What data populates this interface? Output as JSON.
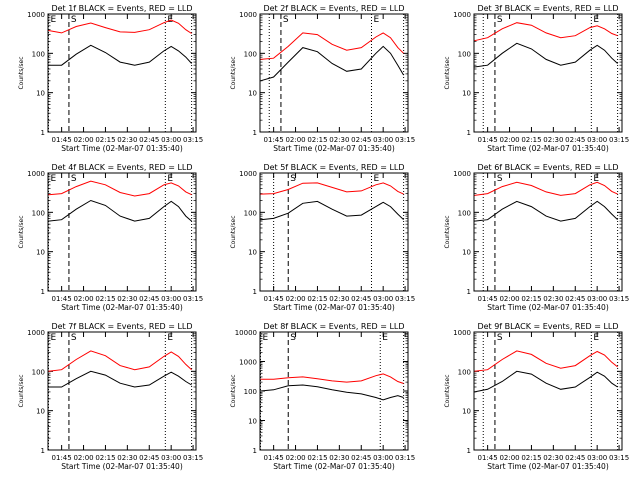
{
  "chart_data": {
    "type": "line",
    "x_ticks": [
      "01:45",
      "02:00",
      "02:15",
      "02:30",
      "02:45",
      "03:00",
      "03:15"
    ],
    "xlim": [
      "01:35:40",
      "03:17:00"
    ],
    "ylim": [
      1,
      1000
    ],
    "ylim_panel8": [
      1,
      10000
    ],
    "yscale": "log",
    "xlabel": "Start Time (02-Mar-07 01:35:40)",
    "ylabel": "Counts/sec",
    "grid": false,
    "series_colors": {
      "events": "#000000",
      "lld": "#ff0000"
    },
    "panels": [
      {
        "title": "Det 1f BLACK = Events, RED = LLD",
        "ymax": 1000,
        "markers": [
          {
            "label": "E",
            "time": "01:36"
          },
          {
            "label": "S",
            "time": "01:50"
          },
          {
            "label": "E",
            "time": "02:56"
          },
          {
            "label": "",
            "time": "03:14"
          }
        ],
        "series": [
          {
            "x": [
              "01:36",
              "01:45",
              "01:55",
              "02:05",
              "02:15",
              "02:25",
              "02:35",
              "02:45",
              "02:55",
              "03:00",
              "03:05",
              "03:10",
              "03:14"
            ],
            "y": [
              380,
              330,
              480,
              590,
              450,
              350,
              340,
              400,
              600,
              700,
              580,
              400,
              320
            ]
          },
          {
            "x": [
              "01:36",
              "01:45",
              "01:55",
              "02:05",
              "02:15",
              "02:25",
              "02:35",
              "02:45",
              "02:55",
              "03:00",
              "03:05",
              "03:10",
              "03:14"
            ],
            "y": [
              50,
              50,
              95,
              160,
              105,
              60,
              50,
              60,
              115,
              150,
              115,
              80,
              55
            ]
          }
        ]
      },
      {
        "title": "Det 2f BLACK = Events, RED = LLD",
        "ymax": 1000,
        "markers": [
          {
            "label": "",
            "time": "01:42"
          },
          {
            "label": "S",
            "time": "01:50"
          },
          {
            "label": "E",
            "time": "02:52"
          },
          {
            "label": "",
            "time": "03:14"
          }
        ],
        "series": [
          {
            "x": [
              "01:36",
              "01:45",
              "01:55",
              "02:05",
              "02:15",
              "02:25",
              "02:35",
              "02:45",
              "02:55",
              "03:00",
              "03:05",
              "03:10",
              "03:14"
            ],
            "y": [
              70,
              75,
              150,
              330,
              300,
              170,
              120,
              140,
              260,
              330,
              250,
              140,
              100
            ]
          },
          {
            "x": [
              "01:36",
              "01:45",
              "01:55",
              "02:05",
              "02:15",
              "02:25",
              "02:35",
              "02:45",
              "02:55",
              "03:00",
              "03:05",
              "03:10",
              "03:14"
            ],
            "y": [
              20,
              25,
              60,
              140,
              110,
              55,
              35,
              40,
              100,
              150,
              100,
              50,
              28
            ]
          }
        ]
      },
      {
        "title": "Det 3f BLACK = Events, RED = LLD",
        "ymax": 1000,
        "markers": [
          {
            "label": "",
            "time": "01:42"
          },
          {
            "label": "S",
            "time": "01:50"
          },
          {
            "label": "E",
            "time": "02:56"
          },
          {
            "label": "",
            "time": "03:14"
          }
        ],
        "series": [
          {
            "x": [
              "01:36",
              "01:45",
              "01:55",
              "02:05",
              "02:15",
              "02:25",
              "02:35",
              "02:45",
              "02:55",
              "03:00",
              "03:05",
              "03:10",
              "03:14"
            ],
            "y": [
              210,
              250,
              420,
              600,
              520,
              330,
              250,
              280,
              450,
              500,
              420,
              320,
              280
            ]
          },
          {
            "x": [
              "01:36",
              "01:45",
              "01:55",
              "02:05",
              "02:15",
              "02:25",
              "02:35",
              "02:45",
              "02:55",
              "03:00",
              "03:05",
              "03:10",
              "03:14"
            ],
            "y": [
              45,
              50,
              100,
              180,
              130,
              70,
              50,
              60,
              120,
              160,
              120,
              75,
              55
            ]
          }
        ]
      },
      {
        "title": "Det 4f BLACK = Events, RED = LLD",
        "ymax": 1000,
        "markers": [
          {
            "label": "E",
            "time": "01:36"
          },
          {
            "label": "S",
            "time": "01:50"
          },
          {
            "label": "E",
            "time": "02:56"
          },
          {
            "label": "",
            "time": "03:14"
          }
        ],
        "series": [
          {
            "x": [
              "01:36",
              "01:45",
              "01:55",
              "02:05",
              "02:15",
              "02:25",
              "02:35",
              "02:45",
              "02:55",
              "03:00",
              "03:05",
              "03:10",
              "03:14"
            ],
            "y": [
              280,
              300,
              450,
              620,
              500,
              320,
              260,
              300,
              500,
              560,
              470,
              330,
              280
            ]
          },
          {
            "x": [
              "01:36",
              "01:45",
              "01:55",
              "02:05",
              "02:15",
              "02:25",
              "02:35",
              "02:45",
              "02:55",
              "03:00",
              "03:05",
              "03:10",
              "03:14"
            ],
            "y": [
              60,
              65,
              120,
              200,
              150,
              80,
              60,
              70,
              140,
              190,
              140,
              80,
              60
            ]
          }
        ]
      },
      {
        "title": "Det 5f BLACK = Events, RED = LLD",
        "ymax": 1000,
        "markers": [
          {
            "label": "",
            "time": "01:45"
          },
          {
            "label": "S",
            "time": "01:55"
          },
          {
            "label": "E",
            "time": "02:52"
          },
          {
            "label": "",
            "time": "03:14"
          }
        ],
        "series": [
          {
            "x": [
              "01:36",
              "01:45",
              "01:55",
              "02:05",
              "02:15",
              "02:25",
              "02:35",
              "02:45",
              "02:55",
              "03:00",
              "03:05",
              "03:10",
              "03:14"
            ],
            "y": [
              290,
              300,
              380,
              550,
              560,
              430,
              330,
              350,
              500,
              560,
              470,
              340,
              290
            ]
          },
          {
            "x": [
              "01:36",
              "01:45",
              "01:55",
              "02:05",
              "02:15",
              "02:25",
              "02:35",
              "02:45",
              "02:55",
              "03:00",
              "03:05",
              "03:10",
              "03:14"
            ],
            "y": [
              65,
              70,
              95,
              170,
              190,
              120,
              80,
              85,
              140,
              180,
              140,
              90,
              65
            ]
          }
        ]
      },
      {
        "title": "Det 6f BLACK = Events, RED = LLD",
        "ymax": 1000,
        "markers": [
          {
            "label": "",
            "time": "01:42"
          },
          {
            "label": "S",
            "time": "01:50"
          },
          {
            "label": "E",
            "time": "02:56"
          },
          {
            "label": "",
            "time": "03:14"
          }
        ],
        "series": [
          {
            "x": [
              "01:36",
              "01:45",
              "01:55",
              "02:05",
              "02:15",
              "02:25",
              "02:35",
              "02:45",
              "02:55",
              "03:00",
              "03:05",
              "03:10",
              "03:14"
            ],
            "y": [
              270,
              300,
              450,
              580,
              480,
              330,
              270,
              300,
              500,
              580,
              480,
              340,
              290
            ]
          },
          {
            "x": [
              "01:36",
              "01:45",
              "01:55",
              "02:05",
              "02:15",
              "02:25",
              "02:35",
              "02:45",
              "02:55",
              "03:00",
              "03:05",
              "03:10",
              "03:14"
            ],
            "y": [
              60,
              65,
              120,
              190,
              140,
              80,
              60,
              70,
              140,
              190,
              140,
              90,
              65
            ]
          }
        ]
      },
      {
        "title": "Det 7f BLACK = Events, RED = LLD",
        "ymax": 1000,
        "markers": [
          {
            "label": "E",
            "time": "01:36"
          },
          {
            "label": "S",
            "time": "01:50"
          },
          {
            "label": "E",
            "time": "02:56"
          },
          {
            "label": "",
            "time": "03:14"
          }
        ],
        "series": [
          {
            "x": [
              "01:36",
              "01:45",
              "01:55",
              "02:05",
              "02:15",
              "02:25",
              "02:35",
              "02:45",
              "02:55",
              "03:00",
              "03:05",
              "03:10",
              "03:14"
            ],
            "y": [
              100,
              110,
              200,
              330,
              250,
              140,
              110,
              130,
              240,
              310,
              240,
              150,
              110
            ]
          },
          {
            "x": [
              "01:36",
              "01:45",
              "01:55",
              "02:05",
              "02:15",
              "02:25",
              "02:35",
              "02:45",
              "02:55",
              "03:00",
              "03:05",
              "03:10",
              "03:14"
            ],
            "y": [
              40,
              40,
              65,
              100,
              80,
              50,
              40,
              45,
              75,
              95,
              75,
              55,
              45
            ]
          }
        ]
      },
      {
        "title": "Det 8f BLACK = Events, RED = LLD",
        "ymax": 10000,
        "markers": [
          {
            "label": "E",
            "time": "01:36"
          },
          {
            "label": "S",
            "time": "01:55"
          },
          {
            "label": "E",
            "time": "02:58"
          },
          {
            "label": "",
            "time": "03:14"
          }
        ],
        "series": [
          {
            "x": [
              "01:36",
              "01:45",
              "01:55",
              "02:05",
              "02:15",
              "02:25",
              "02:35",
              "02:45",
              "02:55",
              "03:00",
              "03:05",
              "03:10",
              "03:14"
            ],
            "y": [
              250,
              250,
              280,
              300,
              260,
              220,
              200,
              220,
              330,
              380,
              300,
              210,
              180
            ]
          },
          {
            "x": [
              "01:36",
              "01:45",
              "01:55",
              "02:05",
              "02:15",
              "02:25",
              "02:35",
              "02:45",
              "02:55",
              "03:00",
              "03:05",
              "03:10",
              "03:14"
            ],
            "y": [
              100,
              110,
              150,
              160,
              140,
              110,
              90,
              80,
              60,
              50,
              60,
              70,
              60
            ]
          }
        ]
      },
      {
        "title": "Det 9f BLACK = Events, RED = LLD",
        "ymax": 1000,
        "markers": [
          {
            "label": "",
            "time": "01:42"
          },
          {
            "label": "S",
            "time": "01:50"
          },
          {
            "label": "E",
            "time": "02:56"
          },
          {
            "label": "",
            "time": "03:14"
          }
        ],
        "series": [
          {
            "x": [
              "01:36",
              "01:45",
              "01:55",
              "02:05",
              "02:15",
              "02:25",
              "02:35",
              "02:45",
              "02:55",
              "03:00",
              "03:05",
              "03:10",
              "03:14"
            ],
            "y": [
              100,
              110,
              200,
              330,
              270,
              160,
              120,
              140,
              250,
              320,
              260,
              170,
              130
            ]
          },
          {
            "x": [
              "01:36",
              "01:45",
              "01:55",
              "02:05",
              "02:15",
              "02:25",
              "02:35",
              "02:45",
              "02:55",
              "03:00",
              "03:05",
              "03:10",
              "03:14"
            ],
            "y": [
              30,
              35,
              55,
              100,
              85,
              50,
              35,
              40,
              70,
              95,
              75,
              50,
              40
            ]
          }
        ]
      }
    ]
  }
}
